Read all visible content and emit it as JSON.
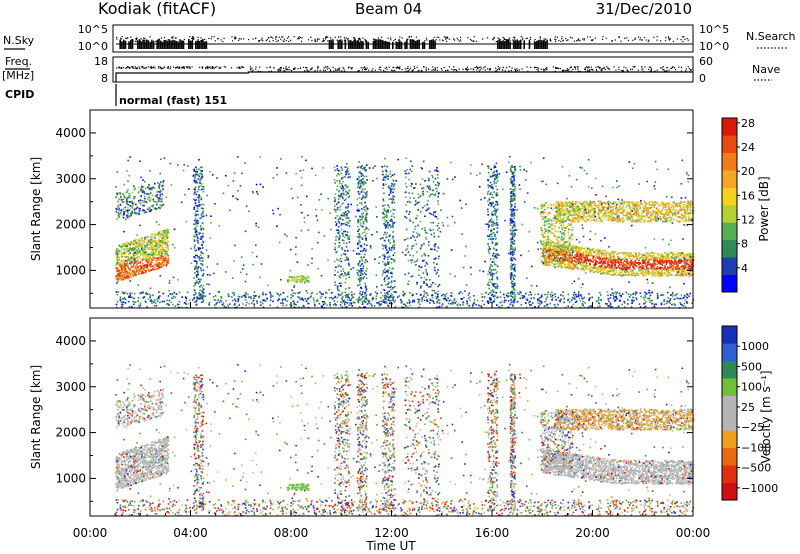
{
  "header": {
    "station": "Kodiak (fitACF)",
    "beam": "Beam 04",
    "date": "31/Dec/2010"
  },
  "chart_data": [
    {
      "type": "line",
      "panel": "noise",
      "left_label": "N.Sky",
      "right_label": "N.Search",
      "left_ticks": [
        "10^5",
        "10^0"
      ],
      "right_ticks": [
        "10^5",
        "10^0"
      ]
    },
    {
      "type": "line",
      "panel": "frequency",
      "left_label_top": "Freq.",
      "left_label_bottom": "[MHz]",
      "left_ticks": [
        "18",
        "8"
      ],
      "right_label": "Nave",
      "right_ticks": [
        "60",
        "0"
      ],
      "cpid_label": "CPID",
      "cpid_annotation": "normal (fast) 151",
      "cpid_start_hour": 0.95
    },
    {
      "type": "heatmap",
      "panel": "power",
      "ylabel": "Slant Range [km]",
      "ylim": [
        180,
        4500
      ],
      "yticks": [
        "1000",
        "2000",
        "3000",
        "4000"
      ],
      "colorbar_label": "Power [dB]",
      "colorbar_ticks": [
        "4",
        "8",
        "12",
        "16",
        "20",
        "24",
        "28"
      ],
      "colors": [
        "#0000ff",
        "#1f3fb0",
        "#2e8b57",
        "#53b055",
        "#b2d135",
        "#f5d21e",
        "#f5a623",
        "#f07c1c",
        "#e84a14",
        "#d91a0a"
      ]
    },
    {
      "type": "heatmap",
      "panel": "velocity",
      "ylabel": "Slant Range [km]",
      "ylim": [
        180,
        4500
      ],
      "yticks": [
        "1000",
        "2000",
        "3000",
        "4000"
      ],
      "colorbar_label": "Velocity [m s⁻¹]",
      "colorbar_ticks": [
        "1000",
        "500",
        "100",
        "25",
        "−25",
        "−100",
        "−500",
        "−1000"
      ],
      "colors": [
        "#1a2fb8",
        "#2f5fd0",
        "#2e8b57",
        "#6fc13a",
        "#b5b5b5",
        "#b5b5b5",
        "#f0a020",
        "#e86a10",
        "#e03010",
        "#d01010"
      ]
    }
  ],
  "xaxis": {
    "label": "Time UT",
    "ticks": [
      "00:00",
      "04:00",
      "08:00",
      "12:00",
      "16:00",
      "20:00",
      "00:00"
    ]
  }
}
